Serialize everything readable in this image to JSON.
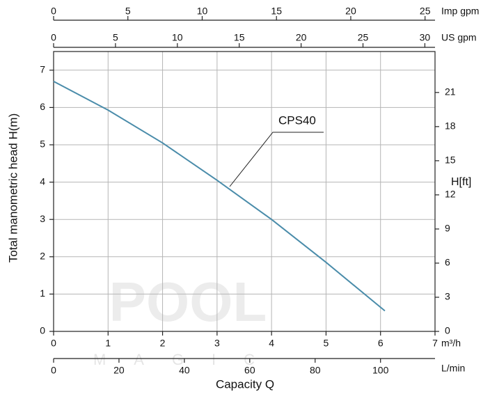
{
  "chart_data": {
    "type": "line",
    "x": [
      0,
      1,
      2,
      3,
      4,
      5,
      6.08
    ],
    "series": [
      {
        "name": "CPS40",
        "color": "#4a8caa",
        "values": [
          6.7,
          5.93,
          5.05,
          4.05,
          3.0,
          1.85,
          0.55
        ]
      }
    ],
    "xlim": [
      0,
      7
    ],
    "xticks": [
      0,
      1,
      2,
      3,
      4,
      5,
      6,
      7
    ],
    "xlabel": "Capacity Q",
    "xunit": "m³/h",
    "ylim": [
      0,
      7.5
    ],
    "yticks": [
      0,
      1,
      2,
      3,
      4,
      5,
      6,
      7
    ],
    "ylabel": "Total manometric head H(m)",
    "y2lim": [
      0,
      24.6
    ],
    "y2ticks": [
      0,
      3,
      6,
      9,
      12,
      15,
      18,
      21
    ],
    "y2label": "H[ft]",
    "grid": true,
    "extra_x_axes": [
      {
        "label": "L/min",
        "position": "bottom",
        "xlim": [
          0,
          116.67
        ],
        "xticks": [
          0,
          20,
          40,
          60,
          80,
          100
        ]
      },
      {
        "label": "US gpm",
        "position": "top",
        "xlim": [
          0,
          30.82
        ],
        "xticks": [
          0,
          5,
          10,
          15,
          20,
          25,
          30
        ]
      },
      {
        "label": "Imp gpm",
        "position": "top",
        "xlim": [
          0,
          25.67
        ],
        "xticks": [
          0,
          5,
          10,
          15,
          20,
          25
        ]
      }
    ],
    "watermark": [
      "POOL",
      "MAGIC"
    ]
  }
}
